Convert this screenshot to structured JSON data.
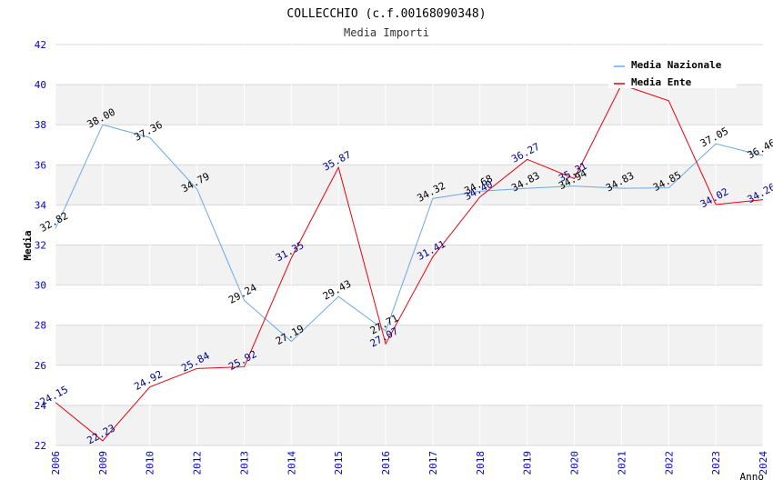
{
  "chart_data": {
    "type": "line",
    "title": "COLLECCHIO (c.f.00168090348)",
    "subtitle": "Media Importi",
    "xlabel": "Anno",
    "ylabel": "Media",
    "ylim": [
      22,
      42
    ],
    "yticks": [
      22,
      24,
      26,
      28,
      30,
      32,
      34,
      36,
      38,
      40,
      42
    ],
    "categories": [
      "2006",
      "2009",
      "2010",
      "2012",
      "2013",
      "2014",
      "2015",
      "2016",
      "2017",
      "2018",
      "2019",
      "2020",
      "2021",
      "2022",
      "2023",
      "2024"
    ],
    "series": [
      {
        "name": "Media Nazionale",
        "color": "#6aa8e8",
        "label_color": "#000000",
        "values": [
          32.82,
          38.0,
          37.36,
          34.79,
          29.24,
          27.19,
          29.43,
          27.71,
          34.32,
          34.68,
          34.83,
          34.94,
          34.83,
          34.85,
          37.05,
          36.46
        ],
        "labels": [
          "32.82",
          "38.00",
          "37.36",
          "34.79",
          "29.24",
          "27.19",
          "29.43",
          "27.71",
          "34.32",
          "34.68",
          "34.83",
          "34.94",
          "34.83",
          "34.85",
          "37.05",
          "36.46"
        ]
      },
      {
        "name": "Media Ente",
        "color": "#e8000b",
        "label_color": "#00008b",
        "values": [
          24.15,
          22.23,
          24.92,
          25.84,
          25.92,
          31.35,
          35.87,
          27.07,
          31.41,
          34.4,
          36.27,
          35.31,
          40.0,
          39.2,
          34.02,
          34.26
        ],
        "labels": [
          "24.15",
          "22.23",
          "24.92",
          "25.84",
          "25.92",
          "31.35",
          "35.87",
          "27.07",
          "31.41",
          "34.40",
          "36.27",
          "35.31",
          "",
          "",
          "34.02",
          "34.26"
        ]
      }
    ],
    "grid": true,
    "legend": "top-right",
    "colors": {
      "band": "#f2f2f2",
      "gridline": "#d8d8d8",
      "tick_label": "#0000cc",
      "text": "#000000",
      "subtitle": "#333333"
    }
  }
}
